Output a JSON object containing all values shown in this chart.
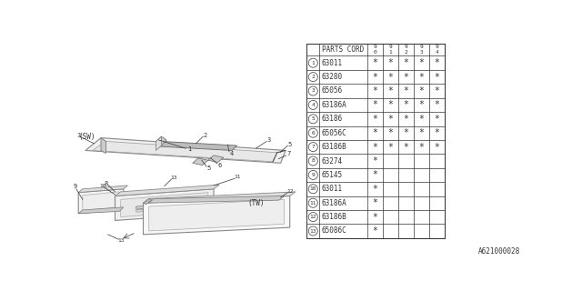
{
  "bg_color": "#ffffff",
  "parts_label": "PARTS CORD",
  "col_headers": [
    "9\n0",
    "9\n1",
    "9\n2",
    "9\n3",
    "9\n4"
  ],
  "rows": [
    {
      "num": "1",
      "code": "63011",
      "marks": [
        1,
        1,
        1,
        1,
        1
      ]
    },
    {
      "num": "2",
      "code": "63280",
      "marks": [
        1,
        1,
        1,
        1,
        1
      ]
    },
    {
      "num": "3",
      "code": "65056",
      "marks": [
        1,
        1,
        1,
        1,
        1
      ]
    },
    {
      "num": "4",
      "code": "63186A",
      "marks": [
        1,
        1,
        1,
        1,
        1
      ]
    },
    {
      "num": "5",
      "code": "63186",
      "marks": [
        1,
        1,
        1,
        1,
        1
      ]
    },
    {
      "num": "6",
      "code": "65056C",
      "marks": [
        1,
        1,
        1,
        1,
        1
      ]
    },
    {
      "num": "7",
      "code": "63186B",
      "marks": [
        1,
        1,
        1,
        1,
        1
      ]
    },
    {
      "num": "8",
      "code": "63274",
      "marks": [
        1,
        0,
        0,
        0,
        0
      ]
    },
    {
      "num": "9",
      "code": "65145",
      "marks": [
        1,
        0,
        0,
        0,
        0
      ]
    },
    {
      "num": "10",
      "code": "63011",
      "marks": [
        1,
        0,
        0,
        0,
        0
      ]
    },
    {
      "num": "11",
      "code": "63186A",
      "marks": [
        1,
        0,
        0,
        0,
        0
      ]
    },
    {
      "num": "12",
      "code": "63186B",
      "marks": [
        1,
        0,
        0,
        0,
        0
      ]
    },
    {
      "num": "13",
      "code": "65086C",
      "marks": [
        1,
        0,
        0,
        0,
        0
      ]
    }
  ],
  "footer": "A621000028",
  "sw_label": "(SW)",
  "tw_label": "(TW)",
  "line_color": "#555555",
  "text_color": "#333333"
}
